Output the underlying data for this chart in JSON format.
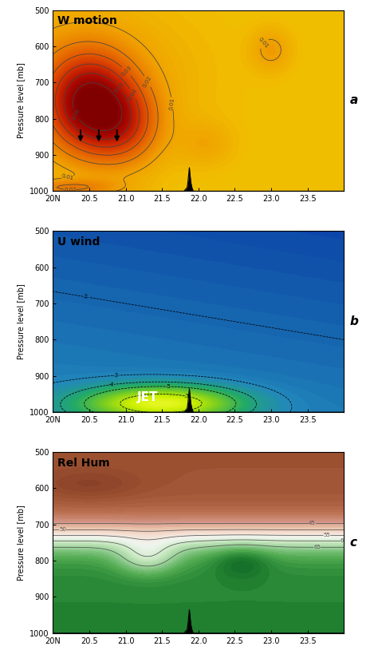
{
  "title_a": "W motion",
  "title_b": "U wind",
  "title_c": "Rel Hum",
  "label_a": "a",
  "label_b": "b",
  "label_c": "c",
  "ylabel": "Pressure level [mb]",
  "x_ticks": [
    20.0,
    20.5,
    21.0,
    21.5,
    22.0,
    22.5,
    23.0,
    23.5
  ],
  "x_tick_labels": [
    "20N",
    "20.5",
    "21.0",
    "21.5",
    "22.0",
    "22.5",
    "23.0",
    "23.5"
  ],
  "y_ticks": [
    500,
    600,
    700,
    800,
    900,
    1000
  ],
  "omega_colors": [
    "#F0C000",
    "#F0A000",
    "#E87800",
    "#E05000",
    "#CC2800",
    "#AA0800",
    "#800000"
  ],
  "uwind_colors": [
    "#FFFF44",
    "#CCEE00",
    "#77CC22",
    "#22AA66",
    "#2288BB",
    "#1155AA",
    "#0022AA",
    "#000055"
  ],
  "relhum_dry_colors": [
    "#7B3520",
    "#9B5030",
    "#BA7050",
    "#D09080",
    "#E8C0A8",
    "#F5DDD0"
  ],
  "relhum_wet_colors": [
    "#F0F5F0",
    "#C8E8C0",
    "#90CC90",
    "#50AA50",
    "#208030",
    "#0A5520"
  ],
  "fig_bg": "#ffffff"
}
